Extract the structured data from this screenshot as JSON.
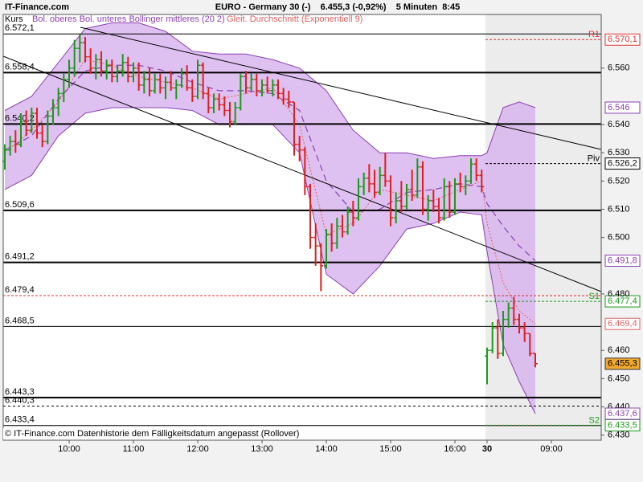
{
  "chart_data": {
    "type": "ohlc",
    "brand": "IT-Finance.com",
    "title": "EURO - Germany 30 (-)    6.455,3 (-0,92%)    5 Minuten  8:45",
    "price_label": "Kurs",
    "footer": "© IT-Finance.com Datenhistorie dem Fälligkeitsdatum angepasst (Rollover)",
    "up_color": "#1a9a1a",
    "down_color": "#dd1f1f",
    "xlim": [
      -0.3,
      111.3
    ],
    "xticks": [
      {
        "value": 12,
        "label": "10:00"
      },
      {
        "value": 24,
        "label": "11:00"
      },
      {
        "value": 36,
        "label": "12:00"
      },
      {
        "value": 48,
        "label": "13:00"
      },
      {
        "value": 60,
        "label": "14:00"
      },
      {
        "value": 72,
        "label": "15:00"
      },
      {
        "value": 84,
        "label": "16:00"
      },
      {
        "value": 90,
        "label": "30"
      },
      {
        "value": 102,
        "label": "09:00"
      }
    ],
    "ylim": [
      6.4282,
      6.579
    ],
    "yticks": [
      {
        "value": 6.43,
        "label": "6.430"
      },
      {
        "value": 6.44,
        "label": "6.440"
      },
      {
        "value": 6.45,
        "label": "6.450"
      },
      {
        "value": 6.46,
        "label": "6.460"
      },
      {
        "value": 6.48,
        "label": "6.480"
      },
      {
        "value": 6.5,
        "label": "6.500"
      },
      {
        "value": 6.51,
        "label": "6.510"
      },
      {
        "value": 6.52,
        "label": "6.520"
      },
      {
        "value": 6.53,
        "label": "6.530"
      },
      {
        "value": 6.54,
        "label": "6.540"
      },
      {
        "value": 6.56,
        "label": "6.560"
      }
    ],
    "open": [
      6.527,
      6.531,
      6.534,
      6.533,
      6.541,
      6.538,
      6.544,
      6.537,
      6.534,
      6.543,
      6.546,
      6.551,
      6.556,
      6.56,
      6.567,
      6.569,
      6.564,
      6.56,
      6.563,
      6.559,
      6.561,
      6.557,
      6.559,
      6.562,
      6.557,
      6.56,
      6.554,
      6.556,
      6.552,
      6.556,
      6.553,
      6.555,
      6.553,
      6.554,
      6.558,
      6.553,
      6.55,
      6.561,
      6.551,
      6.546,
      6.549,
      6.547,
      6.545,
      6.541,
      6.546,
      6.557,
      6.553,
      6.556,
      6.552,
      6.554,
      6.552,
      6.554,
      6.551,
      6.549,
      6.548,
      6.533,
      6.531,
      6.518,
      6.5,
      6.497,
      6.49,
      6.501,
      6.498,
      6.504,
      6.502,
      6.509,
      6.507,
      6.518,
      6.521,
      6.519,
      6.516,
      6.522,
      6.52,
      6.507,
      6.513,
      6.511,
      6.517,
      6.515,
      6.525,
      6.51,
      6.513,
      6.511,
      6.507,
      6.518,
      6.509,
      6.519,
      6.518,
      6.52,
      6.526,
      6.522,
      6.458,
      6.46,
      6.468,
      6.459,
      6.471,
      6.475,
      6.471,
      6.468,
      6.466,
      6.459
    ],
    "high": [
      6.533,
      6.536,
      6.538,
      6.544,
      6.545,
      6.546,
      6.546,
      6.54,
      6.545,
      6.549,
      6.553,
      6.558,
      6.563,
      6.57,
      6.572,
      6.571,
      6.567,
      6.565,
      6.566,
      6.563,
      6.563,
      6.561,
      6.565,
      6.564,
      6.562,
      6.562,
      6.559,
      6.56,
      6.558,
      6.558,
      6.557,
      6.559,
      6.556,
      6.56,
      6.561,
      6.556,
      6.563,
      6.562,
      6.553,
      6.551,
      6.551,
      6.55,
      6.548,
      6.548,
      6.558,
      6.559,
      6.558,
      6.558,
      6.556,
      6.557,
      6.556,
      6.556,
      6.553,
      6.552,
      6.548,
      6.536,
      6.532,
      6.519,
      6.505,
      6.498,
      6.503,
      6.505,
      6.507,
      6.508,
      6.511,
      6.513,
      6.521,
      6.523,
      6.526,
      6.524,
      6.525,
      6.53,
      6.522,
      6.516,
      6.52,
      6.519,
      6.524,
      6.528,
      6.527,
      6.515,
      6.517,
      6.514,
      6.521,
      6.52,
      6.521,
      6.523,
      6.522,
      6.528,
      6.528,
      6.524,
      6.461,
      6.47,
      6.471,
      6.474,
      6.477,
      6.479,
      6.473,
      6.47,
      6.466,
      6.459
    ],
    "low": [
      6.524,
      6.529,
      6.53,
      6.532,
      6.536,
      6.537,
      6.535,
      6.532,
      6.533,
      6.54,
      6.543,
      6.548,
      6.553,
      6.557,
      6.562,
      6.562,
      6.558,
      6.556,
      6.557,
      6.556,
      6.555,
      6.555,
      6.557,
      6.555,
      6.555,
      6.552,
      6.551,
      6.55,
      6.551,
      6.551,
      6.549,
      6.552,
      6.549,
      6.553,
      6.552,
      6.548,
      6.549,
      6.549,
      6.544,
      6.544,
      6.545,
      6.543,
      6.539,
      6.54,
      6.545,
      6.551,
      6.552,
      6.55,
      6.55,
      6.551,
      6.55,
      6.549,
      6.547,
      6.546,
      6.529,
      6.527,
      6.515,
      6.496,
      6.49,
      6.481,
      6.489,
      6.495,
      6.496,
      6.5,
      6.501,
      6.504,
      6.506,
      6.515,
      6.516,
      6.514,
      6.515,
      6.518,
      6.504,
      6.505,
      6.509,
      6.51,
      6.513,
      6.514,
      6.508,
      6.506,
      6.509,
      6.505,
      6.506,
      6.507,
      6.508,
      6.516,
      6.515,
      6.519,
      6.52,
      6.516,
      6.448,
      6.459,
      6.457,
      6.458,
      6.468,
      6.469,
      6.466,
      6.463,
      6.458,
      6.454
    ],
    "close": [
      6.531,
      6.534,
      6.533,
      6.541,
      6.538,
      6.544,
      6.537,
      6.534,
      6.543,
      6.546,
      6.551,
      6.556,
      6.56,
      6.567,
      6.569,
      6.564,
      6.56,
      6.563,
      6.559,
      6.561,
      6.557,
      6.559,
      6.562,
      6.557,
      6.56,
      6.554,
      6.556,
      6.552,
      6.556,
      6.553,
      6.555,
      6.553,
      6.554,
      6.558,
      6.553,
      6.55,
      6.561,
      6.551,
      6.546,
      6.549,
      6.547,
      6.545,
      6.541,
      6.546,
      6.557,
      6.553,
      6.556,
      6.552,
      6.554,
      6.552,
      6.554,
      6.551,
      6.549,
      6.548,
      6.533,
      6.531,
      6.518,
      6.5,
      6.497,
      6.49,
      6.501,
      6.498,
      6.504,
      6.502,
      6.509,
      6.507,
      6.518,
      6.521,
      6.519,
      6.516,
      6.522,
      6.52,
      6.507,
      6.513,
      6.511,
      6.517,
      6.515,
      6.525,
      6.51,
      6.513,
      6.511,
      6.507,
      6.518,
      6.509,
      6.519,
      6.518,
      6.52,
      6.526,
      6.522,
      6.518,
      6.46,
      6.468,
      6.459,
      6.471,
      6.475,
      6.471,
      6.468,
      6.466,
      6.459,
      6.4553
    ],
    "bollinger": {
      "name": "Bol. oberes Bol. unteres Bollinger mittleres (20 2)",
      "color": "#8a3fb0",
      "fill": "#d9b6ee",
      "x": [
        0,
        5,
        10,
        15,
        20,
        25,
        30,
        35,
        40,
        45,
        50,
        55,
        60,
        65,
        70,
        75,
        80,
        85,
        89,
        90,
        93,
        96,
        99
      ],
      "upper": [
        6.545,
        6.55,
        6.562,
        6.574,
        6.576,
        6.576,
        6.573,
        6.566,
        6.565,
        6.565,
        6.563,
        6.56,
        6.552,
        6.538,
        6.53,
        6.53,
        6.528,
        6.529,
        6.529,
        6.53,
        6.546,
        6.548,
        6.546
      ],
      "middle": [
        6.531,
        6.536,
        6.549,
        6.559,
        6.561,
        6.561,
        6.559,
        6.555,
        6.552,
        6.552,
        6.551,
        6.545,
        6.52,
        6.509,
        6.51,
        6.516,
        6.517,
        6.519,
        6.518,
        6.512,
        6.504,
        6.497,
        6.4918
      ],
      "lower": [
        6.517,
        6.522,
        6.536,
        6.544,
        6.546,
        6.546,
        6.546,
        6.545,
        6.54,
        6.54,
        6.54,
        6.53,
        6.487,
        6.48,
        6.49,
        6.503,
        6.505,
        6.509,
        6.508,
        6.495,
        6.462,
        6.449,
        6.4376
      ]
    },
    "ema": {
      "name": "Gleit. Durchschnitt (Exponentiell 9)",
      "color": "#e06060",
      "x": [
        0,
        5,
        10,
        15,
        20,
        25,
        30,
        35,
        40,
        45,
        50,
        55,
        60,
        65,
        70,
        75,
        80,
        85,
        89,
        90,
        93,
        96,
        99
      ],
      "values": [
        6.53,
        6.538,
        6.548,
        6.563,
        6.561,
        6.557,
        6.555,
        6.553,
        6.549,
        6.551,
        6.553,
        6.54,
        6.501,
        6.505,
        6.517,
        6.515,
        6.513,
        6.517,
        6.52,
        6.505,
        6.484,
        6.474,
        6.4694
      ]
    },
    "levels": [
      {
        "value": 6.5721,
        "label": "6.572,1",
        "style": "thin"
      },
      {
        "value": 6.5584,
        "label": "6.558,4",
        "style": "bold"
      },
      {
        "value": 6.5402,
        "label": "6.540,2",
        "style": "bold"
      },
      {
        "value": 6.5096,
        "label": "6.509,6",
        "style": "bold"
      },
      {
        "value": 6.4912,
        "label": "6.491,2",
        "style": "bold"
      },
      {
        "value": 6.4794,
        "label": "6.479,4",
        "style": "red-dashed"
      },
      {
        "value": 6.4685,
        "label": "6.468,5",
        "style": "thin"
      },
      {
        "value": 6.4433,
        "label": "6.443,3",
        "style": "bold"
      },
      {
        "value": 6.4403,
        "label": "6.440,3",
        "style": "dashed"
      },
      {
        "value": 6.4334,
        "label": "6.433,4",
        "style": "thin"
      }
    ],
    "pivots": [
      {
        "name": "R1",
        "value": 6.5701,
        "label": "6.570,1",
        "color": "#e03030"
      },
      {
        "name": "Piv",
        "value": 6.5262,
        "label": "6.526,2",
        "color": "#000000"
      },
      {
        "name": "S1",
        "value": 6.4774,
        "label": "6.477,4",
        "color": "#1a9a1a"
      },
      {
        "name": "S2",
        "value": 6.4335,
        "label": "6.433,5",
        "color": "#1a9a1a"
      }
    ],
    "price_boxes": [
      {
        "value": 6.546,
        "label": "6.546",
        "color": "#8a3fb0"
      },
      {
        "value": 6.4918,
        "label": "6.491,8",
        "color": "#8a3fb0"
      },
      {
        "value": 6.4694,
        "label": "6.469,4",
        "color": "#e06060"
      },
      {
        "value": 6.4553,
        "label": "6.455,3",
        "color": "#f0a830"
      },
      {
        "value": 6.4376,
        "label": "6.437,6",
        "color": "#8a3fb0"
      }
    ]
  }
}
